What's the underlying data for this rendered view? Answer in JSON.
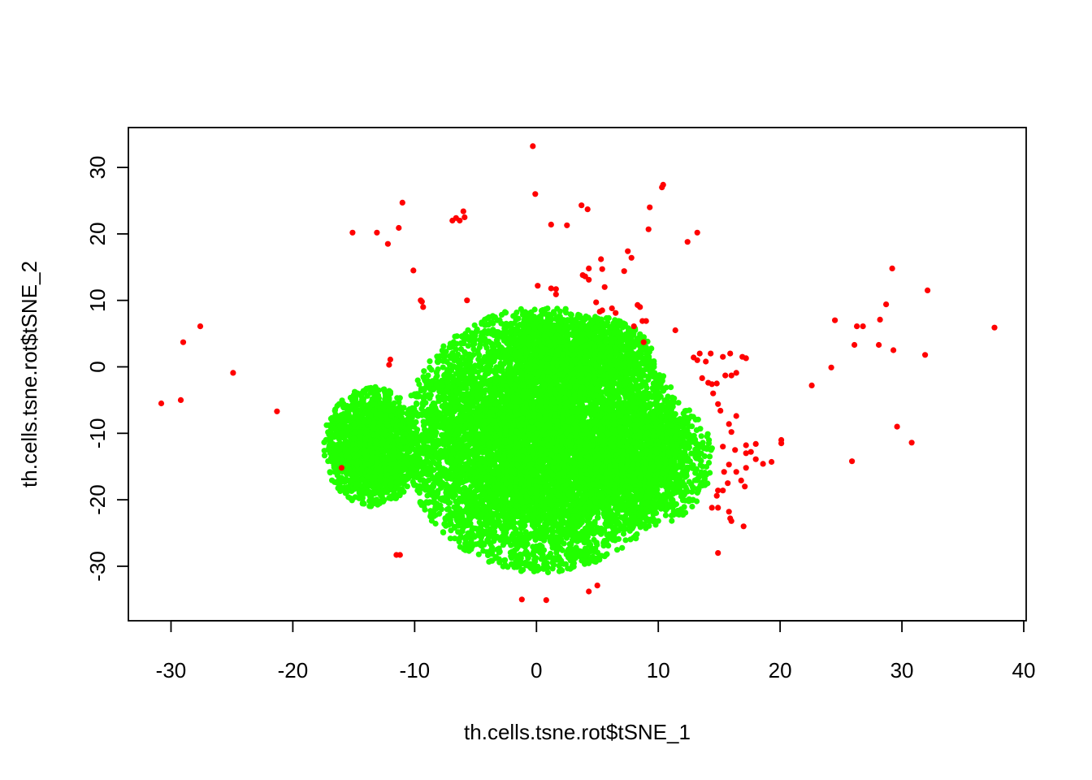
{
  "chart_data": {
    "type": "scatter",
    "title": "",
    "xlabel": "th.cells.tsne.rot$tSNE_1",
    "ylabel": "th.cells.tsne.rot$tSNE_2",
    "xlim": [
      -33.5,
      40.2
    ],
    "ylim": [
      -38.2,
      36.0
    ],
    "xticks": [
      -30,
      -20,
      -10,
      0,
      10,
      20,
      30,
      40
    ],
    "yticks": [
      -30,
      -20,
      -10,
      0,
      10,
      20,
      30
    ],
    "xtick_labels": [
      "-30",
      "-20",
      "-10",
      "0",
      "10",
      "20",
      "30",
      "40"
    ],
    "ytick_labels": [
      "-30",
      "-20",
      "-10",
      "0",
      "10",
      "20",
      "30"
    ],
    "grid": false,
    "colors": {
      "red": "#ff0000",
      "green": "#22ff00",
      "axes": "#000000"
    },
    "series": [
      {
        "color": "#22ff00",
        "marker_count_shown": "dense cloud",
        "clusters": [
          {
            "cx": 0.5,
            "cy": -11,
            "rx": 11.5,
            "ry": 20,
            "n": 7800
          },
          {
            "cx": -13.5,
            "cy": -12,
            "rx": 4.0,
            "ry": 9,
            "n": 1600
          },
          {
            "cx": 9.0,
            "cy": -14,
            "rx": 5.5,
            "ry": 10,
            "n": 1400
          },
          {
            "cx": 3.5,
            "cy": 2,
            "rx": 6.0,
            "ry": 6,
            "n": 900
          }
        ]
      },
      {
        "color": "#ff0000",
        "points": [
          [
            -30.8,
            -5.5
          ],
          [
            -29.2,
            -5.0
          ],
          [
            -29.0,
            3.7
          ],
          [
            -27.6,
            6.1
          ],
          [
            -24.9,
            -0.9
          ],
          [
            -21.3,
            -6.7
          ],
          [
            -16.0,
            -15.2
          ],
          [
            -15.1,
            20.2
          ],
          [
            -13.1,
            20.2
          ],
          [
            -12.2,
            18.5
          ],
          [
            -11.3,
            20.9
          ],
          [
            -11.0,
            24.7
          ],
          [
            -12.0,
            1.1
          ],
          [
            -12.1,
            0.3
          ],
          [
            -11.5,
            -28.3
          ],
          [
            -11.2,
            -28.3
          ],
          [
            -10.1,
            14.5
          ],
          [
            -9.5,
            10.0
          ],
          [
            -9.4,
            9.8
          ],
          [
            -9.3,
            9.0
          ],
          [
            -6.9,
            22.0
          ],
          [
            -6.6,
            22.4
          ],
          [
            -6.3,
            22.0
          ],
          [
            -6.0,
            23.4
          ],
          [
            -5.9,
            22.5
          ],
          [
            -5.7,
            10.0
          ],
          [
            -0.3,
            33.2
          ],
          [
            -0.1,
            26.0
          ],
          [
            0.1,
            12.2
          ],
          [
            1.2,
            11.8
          ],
          [
            1.6,
            11.7
          ],
          [
            1.6,
            10.9
          ],
          [
            1.2,
            21.4
          ],
          [
            2.5,
            21.3
          ],
          [
            3.7,
            24.3
          ],
          [
            4.2,
            23.7
          ],
          [
            3.8,
            13.8
          ],
          [
            4.0,
            13.6
          ],
          [
            4.3,
            14.8
          ],
          [
            4.3,
            13.1
          ],
          [
            4.9,
            9.7
          ],
          [
            5.2,
            8.3
          ],
          [
            5.4,
            8.5
          ],
          [
            5.3,
            16.2
          ],
          [
            5.4,
            14.7
          ],
          [
            5.6,
            12.0
          ],
          [
            6.2,
            8.8
          ],
          [
            6.5,
            8.1
          ],
          [
            7.2,
            14.4
          ],
          [
            7.5,
            17.4
          ],
          [
            7.8,
            16.4
          ],
          [
            8.0,
            6.1
          ],
          [
            8.3,
            9.3
          ],
          [
            8.5,
            9.0
          ],
          [
            8.7,
            6.9
          ],
          [
            9.0,
            6.9
          ],
          [
            8.8,
            3.7
          ],
          [
            9.2,
            20.7
          ],
          [
            9.3,
            24.0
          ],
          [
            10.3,
            27.0
          ],
          [
            10.4,
            27.4
          ],
          [
            11.4,
            5.5
          ],
          [
            12.4,
            18.8
          ],
          [
            13.2,
            20.2
          ],
          [
            13.4,
            2.0
          ],
          [
            12.9,
            1.4
          ],
          [
            13.2,
            1.0
          ],
          [
            14.3,
            2.0
          ],
          [
            13.9,
            0.8
          ],
          [
            13.6,
            -1.7
          ],
          [
            14.1,
            -2.4
          ],
          [
            14.4,
            -2.6
          ],
          [
            14.8,
            -2.5
          ],
          [
            15.3,
            1.5
          ],
          [
            15.9,
            2.0
          ],
          [
            15.5,
            -1.3
          ],
          [
            16.0,
            -1.3
          ],
          [
            16.4,
            -0.9
          ],
          [
            16.9,
            1.5
          ],
          [
            17.2,
            1.3
          ],
          [
            14.5,
            -4.0
          ],
          [
            14.9,
            -5.6
          ],
          [
            15.1,
            -6.6
          ],
          [
            15.8,
            -8.6
          ],
          [
            16.0,
            -9.8
          ],
          [
            16.4,
            -7.4
          ],
          [
            16.3,
            -12.5
          ],
          [
            15.3,
            -12.0
          ],
          [
            15.8,
            -14.7
          ],
          [
            15.4,
            -15.8
          ],
          [
            15.7,
            -17.5
          ],
          [
            16.4,
            -15.8
          ],
          [
            15.3,
            -18.6
          ],
          [
            14.9,
            -18.6
          ],
          [
            14.8,
            -19.4
          ],
          [
            14.4,
            -21.2
          ],
          [
            14.9,
            -21.2
          ],
          [
            15.8,
            -21.8
          ],
          [
            15.9,
            -22.8
          ],
          [
            16.0,
            -23.2
          ],
          [
            17.0,
            -24.0
          ],
          [
            17.2,
            -11.8
          ],
          [
            17.2,
            -13.0
          ],
          [
            17.2,
            -15.2
          ],
          [
            16.8,
            -17.1
          ],
          [
            17.1,
            -18.0
          ],
          [
            18.0,
            -11.6
          ],
          [
            18.0,
            -13.9
          ],
          [
            18.6,
            -14.6
          ],
          [
            19.3,
            -14.3
          ],
          [
            17.6,
            -12.8
          ],
          [
            20.1,
            -11.0
          ],
          [
            20.1,
            -11.5
          ],
          [
            14.9,
            -28.0
          ],
          [
            -1.2,
            -35.0
          ],
          [
            0.8,
            -35.1
          ],
          [
            4.3,
            -33.8
          ],
          [
            5.0,
            -32.9
          ],
          [
            22.6,
            -2.8
          ],
          [
            24.2,
            -0.1
          ],
          [
            24.5,
            7.0
          ],
          [
            25.9,
            -14.2
          ],
          [
            26.1,
            3.3
          ],
          [
            26.3,
            6.1
          ],
          [
            26.8,
            6.1
          ],
          [
            28.1,
            3.3
          ],
          [
            28.2,
            7.1
          ],
          [
            28.7,
            9.4
          ],
          [
            29.3,
            2.5
          ],
          [
            29.2,
            14.8
          ],
          [
            29.6,
            -9.0
          ],
          [
            30.8,
            -11.4
          ],
          [
            31.9,
            1.8
          ],
          [
            32.1,
            11.5
          ],
          [
            37.6,
            5.9
          ]
        ]
      }
    ]
  }
}
